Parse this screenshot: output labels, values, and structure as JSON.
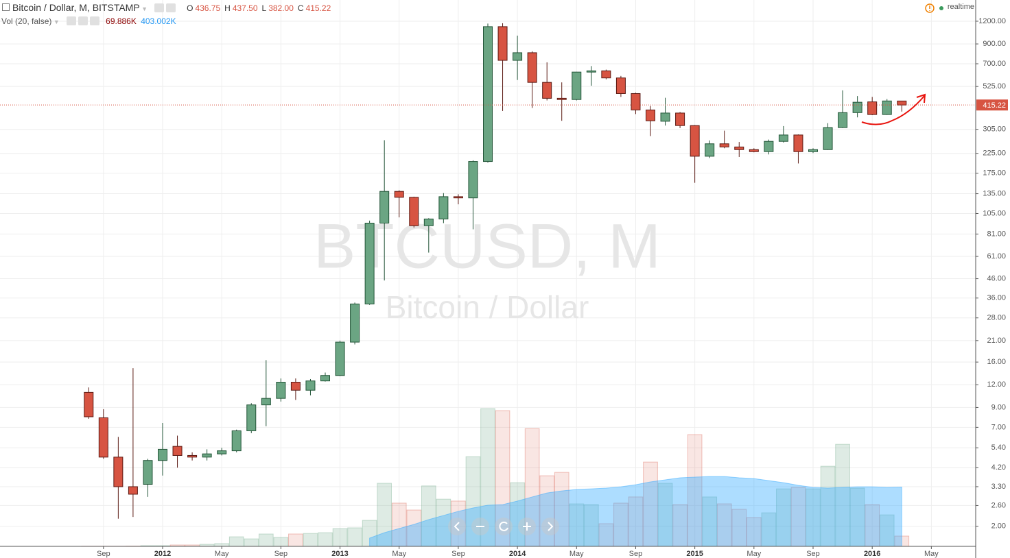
{
  "chart_data": {
    "type": "candlestick",
    "status": {
      "symbol": "Bitcoin / Dollar, M, BITSTAMP",
      "ohlc": [
        {
          "key": "O",
          "value": "436.75"
        },
        {
          "key": "H",
          "value": "437.50"
        },
        {
          "key": "L",
          "value": "382.00"
        },
        {
          "key": "C",
          "value": "415.22"
        }
      ],
      "indicator": "Vol (20, false)",
      "mode": "realtime"
    },
    "watermark": {
      "symbol": "BTCUSD, M",
      "description": "Bitcoin / Dollar"
    },
    "x": [
      "2011-08",
      "2011-09",
      "2011-10",
      "2011-11",
      "2011-12",
      "2012-01",
      "2012-02",
      "2012-03",
      "2012-04",
      "2012-05",
      "2012-06",
      "2012-07",
      "2012-08",
      "2012-09",
      "2012-10",
      "2012-11",
      "2012-12",
      "2013-01",
      "2013-02",
      "2013-03",
      "2013-04",
      "2013-05",
      "2013-06",
      "2013-07",
      "2013-08",
      "2013-09",
      "2013-10",
      "2013-11",
      "2013-12",
      "2014-01",
      "2014-02",
      "2014-03",
      "2014-04",
      "2014-05",
      "2014-06",
      "2014-07",
      "2014-08",
      "2014-09",
      "2014-10",
      "2014-11",
      "2014-12",
      "2015-01",
      "2015-02",
      "2015-03",
      "2015-04",
      "2015-05",
      "2015-06",
      "2015-07",
      "2015-08",
      "2015-09",
      "2015-10",
      "2015-11",
      "2015-12",
      "2016-01",
      "2016-02",
      "2016-03"
    ],
    "open": [
      10.9,
      7.9,
      4.8,
      3.3,
      3.4,
      4.6,
      5.5,
      4.9,
      4.8,
      5.0,
      5.2,
      6.7,
      9.3,
      10.1,
      12.4,
      11.2,
      12.6,
      13.5,
      20.6,
      33.4,
      93,
      139,
      129,
      90,
      98,
      130,
      128,
      203,
      1120,
      731,
      805,
      553,
      452,
      445,
      630,
      640,
      585,
      480,
      390,
      338,
      375,
      320,
      217,
      254,
      244,
      236,
      230,
      262,
      284,
      230,
      236,
      312,
      377,
      432,
      368,
      436.75
    ],
    "high": [
      11.6,
      8.8,
      6.2,
      14.8,
      4.7,
      7.4,
      6.3,
      5.1,
      5.3,
      5.4,
      6.8,
      9.5,
      16.4,
      13.0,
      13.0,
      12.9,
      14.0,
      21,
      34,
      96,
      266,
      141,
      130,
      99,
      136,
      134,
      206,
      1165,
      1170,
      1000,
      820,
      713,
      553,
      632,
      680,
      650,
      600,
      485,
      410,
      455,
      380,
      322,
      265,
      300,
      260,
      240,
      268,
      318,
      286,
      240,
      330,
      500,
      465,
      460,
      448,
      437.5
    ],
    "low": [
      7.8,
      4.7,
      2.2,
      2.25,
      2.9,
      3.8,
      4.2,
      4.6,
      4.6,
      4.9,
      5.1,
      6.5,
      7.1,
      9.7,
      9.9,
      10.5,
      12.5,
      13.4,
      20,
      33,
      45,
      100,
      88,
      64,
      93,
      118,
      86,
      200,
      385,
      570,
      400,
      440,
      340,
      440,
      530,
      575,
      460,
      370,
      280,
      320,
      310,
      155,
      212,
      240,
      215,
      228,
      222,
      258,
      198,
      226,
      235,
      310,
      355,
      365,
      366,
      382
    ],
    "close": [
      8.0,
      4.8,
      3.3,
      3.0,
      4.6,
      5.3,
      4.9,
      4.8,
      5.0,
      5.2,
      6.7,
      9.3,
      10.1,
      12.4,
      11.2,
      12.6,
      13.5,
      20.6,
      33.4,
      93,
      139,
      129,
      90,
      98,
      130,
      128,
      203,
      1120,
      731,
      805,
      553,
      452,
      445,
      630,
      640,
      585,
      480,
      390,
      340,
      375,
      320,
      217,
      254,
      244,
      236,
      230,
      262,
      284,
      230,
      236,
      312,
      377,
      430,
      368,
      437,
      415.22
    ],
    "volume": [
      1,
      1,
      1,
      2,
      4.7,
      4.7,
      9.3,
      9.3,
      14,
      19,
      65,
      51,
      84,
      61,
      84,
      88,
      93,
      121,
      126,
      177,
      429,
      294,
      247,
      411,
      321,
      308,
      610,
      937,
      923,
      433,
      801,
      480,
      503,
      289,
      284,
      154,
      294,
      336,
      573,
      429,
      284,
      760,
      336,
      289,
      252,
      196,
      228,
      391,
      401,
      391,
      545,
      694,
      396,
      284,
      214,
      69.886
    ],
    "volume_label": "69.886K",
    "volume_ma": [
      null,
      null,
      null,
      null,
      null,
      null,
      null,
      null,
      null,
      null,
      null,
      null,
      null,
      null,
      null,
      null,
      null,
      null,
      null,
      56,
      93,
      121,
      149,
      182,
      210,
      238,
      261,
      280,
      284,
      308,
      336,
      363,
      377,
      387,
      391,
      396,
      405,
      419,
      438,
      452,
      466,
      471,
      475,
      475,
      466,
      461,
      447,
      433,
      415,
      401,
      396,
      401,
      405,
      405,
      401,
      403.002
    ],
    "volume_ma_label": "403.002K",
    "up_color": "#6ba583",
    "down_color": "#d75442",
    "ma_color": "#33aaff",
    "log_scale": true,
    "grid": true,
    "xlim": [
      "2011-02",
      "2016-08"
    ],
    "xticks": [
      {
        "value": "2011-09",
        "label": "Sep"
      },
      {
        "value": "2012-01",
        "label": "2012"
      },
      {
        "value": "2012-05",
        "label": "May"
      },
      {
        "value": "2012-09",
        "label": "Sep"
      },
      {
        "value": "2013-01",
        "label": "2013"
      },
      {
        "value": "2013-05",
        "label": "May"
      },
      {
        "value": "2013-09",
        "label": "Sep"
      },
      {
        "value": "2014-01",
        "label": "2014"
      },
      {
        "value": "2014-05",
        "label": "May"
      },
      {
        "value": "2014-09",
        "label": "Sep"
      },
      {
        "value": "2015-01",
        "label": "2015"
      },
      {
        "value": "2015-05",
        "label": "May"
      },
      {
        "value": "2015-09",
        "label": "Sep"
      },
      {
        "value": "2016-01",
        "label": "2016"
      },
      {
        "value": "2016-05",
        "label": "May"
      }
    ],
    "ylim": [
      1.55,
      1570
    ],
    "yticks": [
      {
        "value": 1200,
        "label": "1200.00"
      },
      {
        "value": 900,
        "label": "900.00"
      },
      {
        "value": 700,
        "label": "700.00"
      },
      {
        "value": 525,
        "label": "525.00"
      },
      {
        "value": 305,
        "label": "305.00"
      },
      {
        "value": 225,
        "label": "225.00"
      },
      {
        "value": 175,
        "label": "175.00"
      },
      {
        "value": 135,
        "label": "135.00"
      },
      {
        "value": 105,
        "label": "105.00"
      },
      {
        "value": 81,
        "label": "81.00"
      },
      {
        "value": 61,
        "label": "61.00"
      },
      {
        "value": 46,
        "label": "46.00"
      },
      {
        "value": 36,
        "label": "36.00"
      },
      {
        "value": 28,
        "label": "28.00"
      },
      {
        "value": 21,
        "label": "21.00"
      },
      {
        "value": 16,
        "label": "16.00"
      },
      {
        "value": 12,
        "label": "12.00"
      },
      {
        "value": 9,
        "label": "9.00"
      },
      {
        "value": 7,
        "label": "7.00"
      },
      {
        "value": 5.4,
        "label": "5.40"
      },
      {
        "value": 4.2,
        "label": "4.20"
      },
      {
        "value": 3.3,
        "label": "3.30"
      },
      {
        "value": 2.6,
        "label": "2.60"
      },
      {
        "value": 2,
        "label": "2.00"
      }
    ],
    "last_price": {
      "value": 415.22,
      "label": "415.22"
    }
  }
}
